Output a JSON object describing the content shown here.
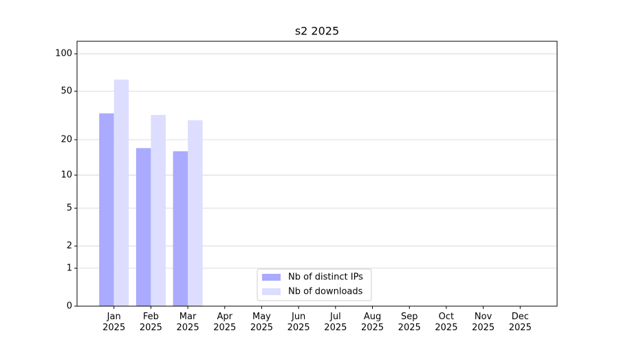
{
  "chart_data": {
    "type": "bar",
    "title": "s2 2025",
    "categories": [
      "Jan\n2025",
      "Feb\n2025",
      "Mar\n2025",
      "Apr\n2025",
      "May\n2025",
      "Jun\n2025",
      "Jul\n2025",
      "Aug\n2025",
      "Sep\n2025",
      "Oct\n2025",
      "Nov\n2025",
      "Dec\n2025"
    ],
    "series": [
      {
        "name": "Nb of distinct IPs",
        "color": "#aaaaff",
        "values": [
          33,
          17,
          16,
          null,
          null,
          null,
          null,
          null,
          null,
          null,
          null,
          null
        ]
      },
      {
        "name": "Nb of downloads",
        "color": "#ddddff",
        "values": [
          62,
          32,
          29,
          null,
          null,
          null,
          null,
          null,
          null,
          null,
          null,
          null
        ]
      }
    ],
    "y_scale": "log1p",
    "ylim": [
      0,
      126
    ],
    "yticks": [
      0,
      1,
      2,
      5,
      10,
      20,
      50,
      100
    ],
    "grid": true,
    "legend": "lower center"
  }
}
